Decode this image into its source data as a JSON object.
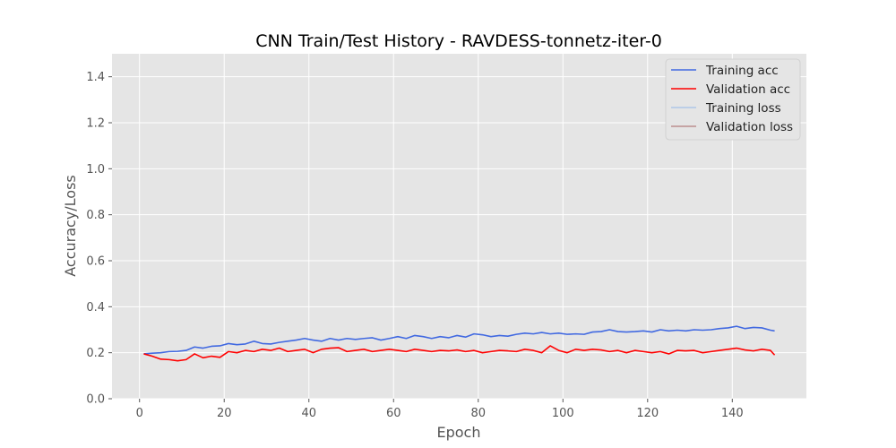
{
  "chart_data": {
    "type": "line",
    "title": "CNN Train/Test History -  RAVDESS-tonnetz-iter-0",
    "xlabel": "Epoch",
    "ylabel": "Accuracy/Loss",
    "xlim": [
      -6.5,
      157.5
    ],
    "ylim": [
      0,
      1.5
    ],
    "xticks": [
      0,
      20,
      40,
      60,
      80,
      100,
      120,
      140
    ],
    "yticks": [
      0.0,
      0.2,
      0.4,
      0.6,
      0.8,
      1.0,
      1.2,
      1.4
    ],
    "xtick_labels": [
      "0",
      "20",
      "40",
      "60",
      "80",
      "100",
      "120",
      "140"
    ],
    "ytick_labels": [
      "0.0",
      "0.2",
      "0.4",
      "0.6",
      "0.8",
      "1.0",
      "1.2",
      "1.4"
    ],
    "grid": true,
    "legend_position": "top-right",
    "series": [
      {
        "name": "Training acc",
        "color": "#4169e1",
        "x": [
          1,
          3,
          5,
          7,
          9,
          11,
          13,
          15,
          17,
          19,
          21,
          23,
          25,
          27,
          29,
          31,
          33,
          35,
          37,
          39,
          41,
          43,
          45,
          47,
          49,
          51,
          53,
          55,
          57,
          59,
          61,
          63,
          65,
          67,
          69,
          71,
          73,
          75,
          77,
          79,
          81,
          83,
          85,
          87,
          89,
          91,
          93,
          95,
          97,
          99,
          101,
          103,
          105,
          107,
          109,
          111,
          113,
          115,
          117,
          119,
          121,
          123,
          125,
          127,
          129,
          131,
          133,
          135,
          137,
          139,
          141,
          143,
          145,
          147,
          149,
          150
        ],
        "values": [
          0.195,
          0.198,
          0.2,
          0.205,
          0.206,
          0.21,
          0.225,
          0.22,
          0.228,
          0.23,
          0.24,
          0.235,
          0.238,
          0.25,
          0.24,
          0.238,
          0.245,
          0.25,
          0.255,
          0.262,
          0.255,
          0.25,
          0.262,
          0.255,
          0.262,
          0.258,
          0.262,
          0.265,
          0.255,
          0.262,
          0.27,
          0.262,
          0.275,
          0.27,
          0.262,
          0.27,
          0.265,
          0.275,
          0.268,
          0.282,
          0.278,
          0.27,
          0.275,
          0.272,
          0.28,
          0.285,
          0.282,
          0.288,
          0.282,
          0.285,
          0.28,
          0.282,
          0.28,
          0.29,
          0.292,
          0.3,
          0.292,
          0.29,
          0.292,
          0.295,
          0.29,
          0.3,
          0.295,
          0.298,
          0.295,
          0.3,
          0.298,
          0.3,
          0.305,
          0.308,
          0.315,
          0.305,
          0.31,
          0.308,
          0.298,
          0.295
        ]
      },
      {
        "name": "Validation acc",
        "color": "#ff0000",
        "x": [
          1,
          3,
          5,
          7,
          9,
          11,
          13,
          15,
          17,
          19,
          21,
          23,
          25,
          27,
          29,
          31,
          33,
          35,
          37,
          39,
          41,
          43,
          45,
          47,
          49,
          51,
          53,
          55,
          57,
          59,
          61,
          63,
          65,
          67,
          69,
          71,
          73,
          75,
          77,
          79,
          81,
          83,
          85,
          87,
          89,
          91,
          93,
          95,
          97,
          99,
          101,
          103,
          105,
          107,
          109,
          111,
          113,
          115,
          117,
          119,
          121,
          123,
          125,
          127,
          129,
          131,
          133,
          135,
          137,
          139,
          141,
          143,
          145,
          147,
          149,
          150
        ],
        "values": [
          0.195,
          0.185,
          0.172,
          0.17,
          0.165,
          0.17,
          0.195,
          0.178,
          0.185,
          0.18,
          0.205,
          0.2,
          0.21,
          0.205,
          0.215,
          0.21,
          0.22,
          0.205,
          0.21,
          0.215,
          0.2,
          0.215,
          0.22,
          0.222,
          0.205,
          0.21,
          0.215,
          0.205,
          0.21,
          0.215,
          0.21,
          0.205,
          0.215,
          0.21,
          0.205,
          0.21,
          0.208,
          0.212,
          0.205,
          0.21,
          0.2,
          0.205,
          0.21,
          0.208,
          0.205,
          0.215,
          0.21,
          0.2,
          0.23,
          0.21,
          0.2,
          0.215,
          0.21,
          0.215,
          0.212,
          0.205,
          0.21,
          0.2,
          0.21,
          0.205,
          0.2,
          0.205,
          0.195,
          0.21,
          0.208,
          0.21,
          0.2,
          0.205,
          0.21,
          0.215,
          0.22,
          0.212,
          0.208,
          0.215,
          0.21,
          0.19
        ]
      },
      {
        "name": "Training loss",
        "color": "#aec7e8",
        "x": [],
        "values": []
      },
      {
        "name": "Validation loss",
        "color": "#bc8f8f",
        "x": [],
        "values": []
      }
    ]
  }
}
